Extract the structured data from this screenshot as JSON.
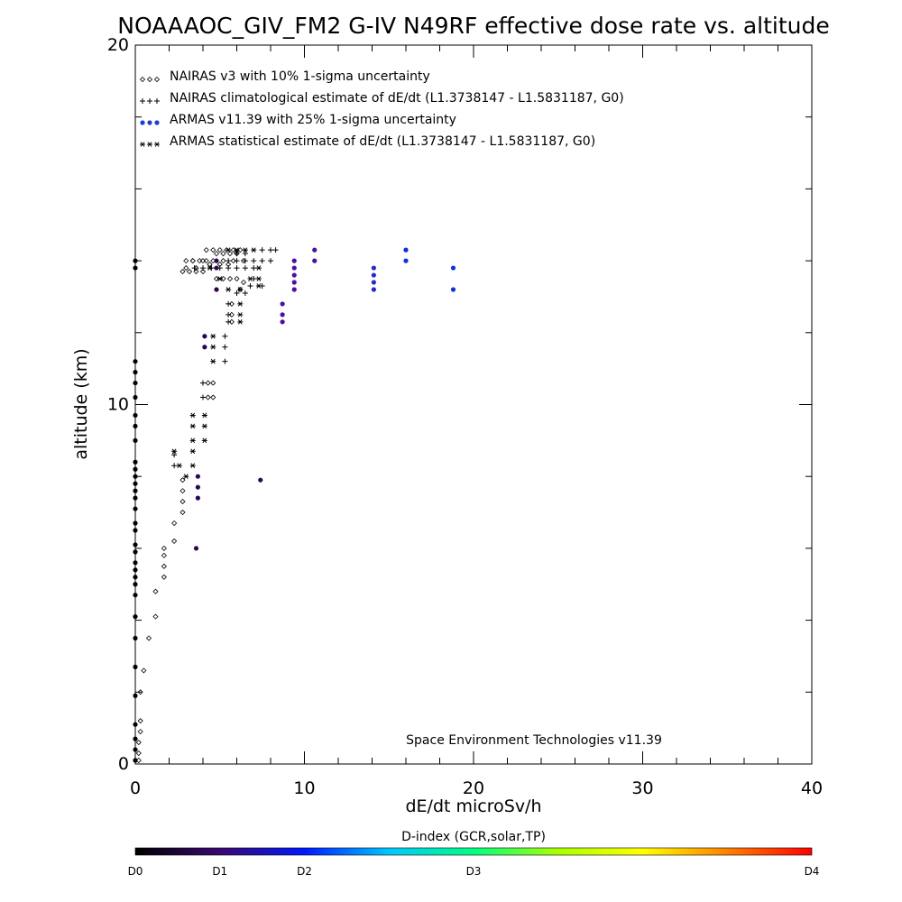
{
  "chart_data": {
    "type": "scatter",
    "title": "NOAAAOC_GIV_FM2 G-IV   N49RF  effective dose rate vs. altitude",
    "xlabel": "dE/dt microSv/h",
    "ylabel": "altitude (km)",
    "xlim": [
      0,
      40
    ],
    "ylim": [
      0,
      20
    ],
    "x_ticks": [
      "0",
      "10",
      "20",
      "30",
      "40"
    ],
    "y_ticks": [
      "0",
      "10",
      "20"
    ],
    "grid": false,
    "legend_position": "top-left",
    "annotation": "Space Environment Technologies v11.39",
    "legend": [
      {
        "marker": "diamond",
        "label": "NAIRAS v3 with 10% 1-sigma uncertainty"
      },
      {
        "marker": "plus",
        "label": "NAIRAS climatological estimate of dE/dt (L1.3738147 - L1.5831187, G0)"
      },
      {
        "marker": "dot",
        "color": "#1a3ed6",
        "label": "ARMAS v11.39 with 25% 1-sigma uncertainty"
      },
      {
        "marker": "asterisk",
        "label": "ARMAS statistical estimate of dE/dt (L1.3738147 - L1.5831187, G0)"
      }
    ],
    "colorbar": {
      "title": "D-index (GCR,solar,TP)",
      "ticks": [
        {
          "label": "D0",
          "value": 0
        },
        {
          "label": "D1",
          "value": 0.5
        },
        {
          "label": "D2",
          "value": 1
        },
        {
          "label": "D3",
          "value": 2
        },
        {
          "label": "D4",
          "value": 4
        }
      ],
      "colors": [
        "#000000",
        "#3c0870",
        "#0018ff",
        "#00c8ff",
        "#00ff80",
        "#aaff00",
        "#ffff00",
        "#ff8000",
        "#ff0000"
      ]
    },
    "series": [
      {
        "name": "NAIRAS v3 with 10% 1-sigma uncertainty",
        "marker": "diamond",
        "points": [
          [
            0.2,
            0.1
          ],
          [
            0.2,
            0.3
          ],
          [
            0.2,
            0.6
          ],
          [
            0.3,
            0.9
          ],
          [
            0.3,
            1.2
          ],
          [
            0.3,
            2.0
          ],
          [
            0.5,
            2.6
          ],
          [
            0.8,
            3.5
          ],
          [
            1.2,
            4.1
          ],
          [
            1.2,
            4.8
          ],
          [
            1.7,
            5.2
          ],
          [
            1.7,
            5.5
          ],
          [
            1.7,
            5.8
          ],
          [
            1.7,
            6.0
          ],
          [
            2.3,
            6.2
          ],
          [
            2.3,
            6.7
          ],
          [
            2.8,
            7.0
          ],
          [
            2.8,
            7.3
          ],
          [
            2.8,
            7.6
          ],
          [
            2.8,
            7.9
          ],
          [
            4.3,
            10.2
          ],
          [
            4.6,
            10.2
          ],
          [
            4.3,
            10.6
          ],
          [
            4.6,
            10.6
          ],
          [
            5.7,
            12.3
          ],
          [
            5.7,
            12.5
          ],
          [
            5.7,
            12.8
          ],
          [
            6.2,
            13.2
          ],
          [
            6.4,
            13.4
          ],
          [
            2.8,
            13.7
          ],
          [
            3.2,
            13.7
          ],
          [
            3.6,
            13.7
          ],
          [
            4.0,
            13.7
          ],
          [
            4.4,
            13.9
          ],
          [
            5.0,
            13.9
          ],
          [
            5.5,
            13.9
          ],
          [
            3.0,
            14.0
          ],
          [
            3.4,
            14.0
          ],
          [
            3.8,
            14.0
          ],
          [
            4.2,
            14.0
          ],
          [
            4.2,
            14.3
          ],
          [
            4.6,
            14.3
          ],
          [
            5.0,
            14.3
          ],
          [
            5.4,
            14.3
          ],
          [
            5.8,
            14.3
          ],
          [
            6.2,
            14.3
          ],
          [
            3.0,
            13.8
          ],
          [
            3.6,
            13.8
          ],
          [
            4.8,
            13.5
          ],
          [
            5.2,
            13.5
          ],
          [
            5.6,
            13.5
          ],
          [
            6.0,
            13.5
          ],
          [
            3.4,
            14.0
          ],
          [
            4.0,
            14.0
          ],
          [
            4.6,
            14.0
          ],
          [
            5.2,
            14.0
          ],
          [
            5.8,
            14.0
          ],
          [
            6.4,
            14.0
          ],
          [
            4.8,
            14.2
          ],
          [
            5.2,
            14.2
          ],
          [
            5.6,
            14.2
          ],
          [
            6.0,
            14.2
          ]
        ]
      },
      {
        "name": "NAIRAS climatological estimate of dE/dt (L1.3738147 - L1.5831187, G0)",
        "marker": "plus",
        "points": [
          [
            2.3,
            8.3
          ],
          [
            2.3,
            8.6
          ],
          [
            4.0,
            10.2
          ],
          [
            4.0,
            10.6
          ],
          [
            5.3,
            11.2
          ],
          [
            5.3,
            11.6
          ],
          [
            5.3,
            11.9
          ],
          [
            5.5,
            12.3
          ],
          [
            5.5,
            12.5
          ],
          [
            5.5,
            12.8
          ],
          [
            6.0,
            13.1
          ],
          [
            6.5,
            13.1
          ],
          [
            3.5,
            13.8
          ],
          [
            4.0,
            13.8
          ],
          [
            4.5,
            13.8
          ],
          [
            5.0,
            13.8
          ],
          [
            5.5,
            13.8
          ],
          [
            6.0,
            13.8
          ],
          [
            6.5,
            13.8
          ],
          [
            7.0,
            13.8
          ],
          [
            5.5,
            14.0
          ],
          [
            6.0,
            14.0
          ],
          [
            6.5,
            14.0
          ],
          [
            7.0,
            14.0
          ],
          [
            7.5,
            14.0
          ],
          [
            8.0,
            14.0
          ],
          [
            6.0,
            14.2
          ],
          [
            6.5,
            14.2
          ],
          [
            7.5,
            14.3
          ],
          [
            8.0,
            14.3
          ],
          [
            8.3,
            14.3
          ],
          [
            7.0,
            13.5
          ],
          [
            7.5,
            13.3
          ],
          [
            6.8,
            13.3
          ]
        ]
      },
      {
        "name": "ARMAS statistical estimate of dE/dt (L1.3738147 - L1.5831187, G0)",
        "marker": "asterisk",
        "points": [
          [
            2.3,
            8.7
          ],
          [
            3.4,
            8.7
          ],
          [
            3.4,
            8.3
          ],
          [
            3.4,
            9.0
          ],
          [
            3.4,
            9.4
          ],
          [
            3.4,
            9.7
          ],
          [
            4.1,
            9.0
          ],
          [
            4.1,
            9.4
          ],
          [
            4.1,
            9.7
          ],
          [
            4.6,
            11.6
          ],
          [
            4.6,
            11.9
          ],
          [
            4.6,
            11.2
          ],
          [
            6.2,
            12.3
          ],
          [
            6.2,
            12.5
          ],
          [
            6.2,
            12.8
          ],
          [
            2.6,
            8.3
          ],
          [
            3.0,
            8.0
          ],
          [
            4.4,
            13.8
          ],
          [
            5.0,
            13.5
          ],
          [
            5.5,
            13.2
          ],
          [
            6.2,
            13.2
          ],
          [
            6.8,
            13.5
          ],
          [
            7.3,
            13.8
          ],
          [
            7.3,
            13.5
          ],
          [
            7.3,
            13.3
          ],
          [
            5.5,
            14.3
          ],
          [
            6.0,
            14.3
          ],
          [
            6.5,
            14.3
          ],
          [
            7.0,
            14.3
          ]
        ]
      },
      {
        "name": "ARMAS v11.39 with 25% 1-sigma uncertainty",
        "marker": "dot",
        "points": [
          [
            0.0,
            0.1
          ],
          [
            0.0,
            0.4
          ],
          [
            0.0,
            0.7
          ],
          [
            0.0,
            1.1
          ],
          [
            0.0,
            1.9
          ],
          [
            0.0,
            2.7
          ],
          [
            0.0,
            3.5
          ],
          [
            0.0,
            4.1
          ],
          [
            0.0,
            4.7
          ],
          [
            0.0,
            5.0
          ],
          [
            0.0,
            5.2
          ],
          [
            0.0,
            5.4
          ],
          [
            0.0,
            5.6
          ],
          [
            0.0,
            5.9
          ],
          [
            0.0,
            6.1
          ],
          [
            0.0,
            6.5
          ],
          [
            0.0,
            6.7
          ],
          [
            0.0,
            7.1
          ],
          [
            0.0,
            7.4
          ],
          [
            0.0,
            7.6
          ],
          [
            0.0,
            7.8
          ],
          [
            0.0,
            8.0
          ],
          [
            0.0,
            8.2
          ],
          [
            0.0,
            8.4
          ],
          [
            0.0,
            9.0
          ],
          [
            0.0,
            9.4
          ],
          [
            0.0,
            9.7
          ],
          [
            0.0,
            10.2
          ],
          [
            0.0,
            10.6
          ],
          [
            0.0,
            10.9
          ],
          [
            0.0,
            11.2
          ],
          [
            0.0,
            13.8
          ],
          [
            0.0,
            14.0
          ],
          [
            3.6,
            6.0
          ],
          [
            3.7,
            7.4
          ],
          [
            3.7,
            7.7
          ],
          [
            3.7,
            8.0
          ],
          [
            7.4,
            7.9
          ],
          [
            4.1,
            11.6
          ],
          [
            4.1,
            11.9
          ],
          [
            4.8,
            13.2
          ],
          [
            4.8,
            13.8
          ],
          [
            4.8,
            14.0
          ],
          [
            8.7,
            12.3
          ],
          [
            8.7,
            12.5
          ],
          [
            8.7,
            12.8
          ],
          [
            9.4,
            13.2
          ],
          [
            9.4,
            13.4
          ],
          [
            9.4,
            13.6
          ],
          [
            9.4,
            13.8
          ],
          [
            9.4,
            14.0
          ],
          [
            10.6,
            14.0
          ],
          [
            10.6,
            14.3
          ],
          [
            14.1,
            13.2
          ],
          [
            14.1,
            13.4
          ],
          [
            14.1,
            13.6
          ],
          [
            14.1,
            13.8
          ],
          [
            16.0,
            14.0
          ],
          [
            16.0,
            14.3
          ],
          [
            18.8,
            13.2
          ],
          [
            18.8,
            13.8
          ]
        ]
      }
    ]
  }
}
